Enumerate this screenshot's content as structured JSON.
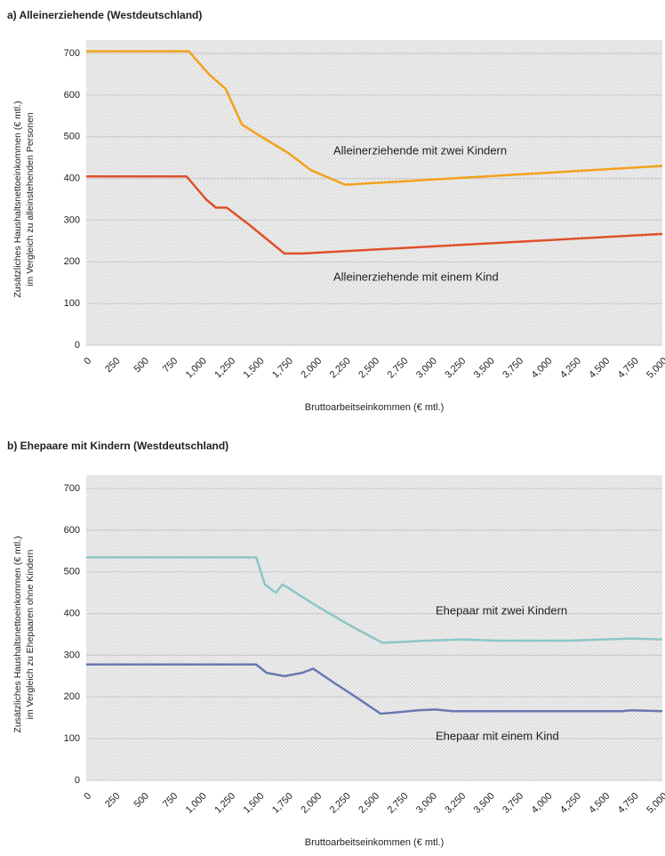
{
  "chart_data": [
    {
      "type": "line",
      "title": "a) Alleinerziehende (Westdeutschland)",
      "xlabel": "Bruttoarbeitseinkommen (€ mtl.)",
      "ylabel": [
        "Zusätzliches Haushaltsnettoeinkommen (€ mtl.)",
        "im Vergleich zu alleinstehenden Personen"
      ],
      "xlim": [
        0,
        5000
      ],
      "xticks": [
        0,
        250,
        500,
        750,
        {
          "value": 1000,
          "label": "1,000"
        },
        {
          "value": 1250,
          "label": "1,250"
        },
        {
          "value": 1500,
          "label": "1,500"
        },
        {
          "value": 1750,
          "label": "1,750"
        },
        {
          "value": 2000,
          "label": "2,000"
        },
        {
          "value": 2250,
          "label": "2,250"
        },
        {
          "value": 2500,
          "label": "2,500"
        },
        {
          "value": 2750,
          "label": "2,750"
        },
        {
          "value": 3000,
          "label": "3,000"
        },
        {
          "value": 3250,
          "label": "3,250"
        },
        {
          "value": 3500,
          "label": "3,500"
        },
        {
          "value": 3750,
          "label": "3,750"
        },
        {
          "value": 4000,
          "label": "4,000"
        },
        {
          "value": 4250,
          "label": "4,250"
        },
        {
          "value": 4500,
          "label": "4,500"
        },
        {
          "value": 4750,
          "label": "4,750"
        },
        {
          "value": 5000,
          "label": "5,000"
        }
      ],
      "ylim": [
        0,
        700
      ],
      "yticks": [
        0,
        100,
        200,
        300,
        400,
        500,
        600,
        700
      ],
      "grid": true,
      "series": [
        {
          "name": "Alleinerziehende mit zwei Kindern",
          "color": "#f2a21c",
          "x": [
            0,
            890,
            1065,
            1210,
            1350,
            1490,
            1760,
            1950,
            2245,
            5000
          ],
          "values": [
            705,
            705,
            650,
            615,
            530,
            505,
            460,
            420,
            385,
            430
          ]
        },
        {
          "name": "Alleinerziehende mit einem Kind",
          "color": "#e0502a",
          "x": [
            0,
            870,
            1040,
            1125,
            1220,
            1410,
            1565,
            1720,
            1875,
            5000
          ],
          "values": [
            405,
            405,
            350,
            330,
            330,
            290,
            255,
            220,
            220,
            267
          ]
        }
      ]
    },
    {
      "type": "line",
      "title": "b) Ehepaare mit Kindern (Westdeutschland)",
      "xlabel": "Bruttoarbeitseinkommen (€ mtl.)",
      "ylabel": [
        "Zusätzliches Haushaltsnettoeinkommen (€ mtl.)",
        "im Vergleich zu Ehepaaren ohne Kindern"
      ],
      "xlim": [
        0,
        5000
      ],
      "xticks": [
        0,
        250,
        500,
        750,
        {
          "value": 1000,
          "label": "1,000"
        },
        {
          "value": 1250,
          "label": "1,250"
        },
        {
          "value": 1500,
          "label": "1,500"
        },
        {
          "value": 1750,
          "label": "1,750"
        },
        {
          "value": 2000,
          "label": "2,000"
        },
        {
          "value": 2250,
          "label": "2,250"
        },
        {
          "value": 2500,
          "label": "2,500"
        },
        {
          "value": 2750,
          "label": "2,750"
        },
        {
          "value": 3000,
          "label": "3,000"
        },
        {
          "value": 3250,
          "label": "3,250"
        },
        {
          "value": 3500,
          "label": "3,500"
        },
        {
          "value": 3750,
          "label": "3,750"
        },
        {
          "value": 4000,
          "label": "4,000"
        },
        {
          "value": 4250,
          "label": "4,250"
        },
        {
          "value": 4500,
          "label": "4,500"
        },
        {
          "value": 4750,
          "label": "4,750"
        },
        {
          "value": 5000,
          "label": "5,000"
        }
      ],
      "ylim": [
        0,
        700
      ],
      "yticks": [
        0,
        100,
        200,
        300,
        400,
        500,
        600,
        700
      ],
      "grid": true,
      "series": [
        {
          "name": "Ehepaar mit zwei Kindern",
          "color": "#8cc6c6",
          "x": [
            0,
            1475,
            1550,
            1645,
            1705,
            1990,
            2300,
            2570,
            2955,
            3265,
            3570,
            4190,
            4730,
            5000
          ],
          "values": [
            535,
            535,
            470,
            450,
            470,
            420,
            370,
            330,
            335,
            338,
            335,
            335,
            340,
            338
          ]
        },
        {
          "name": "Ehepaar mit einem Kind",
          "color": "#6a78b0",
          "x": [
            0,
            1475,
            1565,
            1720,
            1875,
            1970,
            2145,
            2340,
            2555,
            2650,
            2880,
            3030,
            3180,
            4650,
            4730,
            5000
          ],
          "values": [
            278,
            278,
            258,
            250,
            258,
            268,
            235,
            200,
            160,
            162,
            168,
            170,
            166,
            166,
            168,
            166
          ]
        }
      ]
    }
  ]
}
